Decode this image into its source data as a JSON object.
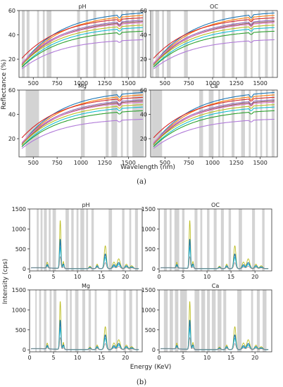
{
  "figure": {
    "part_labels": [
      "(a)",
      "(b)"
    ]
  },
  "chart_data": [
    {
      "type": "line",
      "part": "(a)",
      "xlabel": "Wavelength (nm)",
      "ylabel": "Reflectance (%)",
      "xlim": [
        350,
        1680
      ],
      "ylim": [
        5,
        60
      ],
      "xticks": [
        500,
        750,
        1000,
        1250,
        1500
      ],
      "yticks": [
        20,
        40,
        60
      ],
      "grid": false,
      "series_colors": [
        "#1f77b4",
        "#ff7f0e",
        "#d62728",
        "#9467bd",
        "#8c564b",
        "#e377c2",
        "#bcbd22",
        "#17becf",
        "#2ca02c",
        "#b07ad8"
      ],
      "curve_end_values": [
        58,
        56,
        54,
        52,
        51,
        50,
        48,
        46,
        43,
        36
      ],
      "curve_start_values": [
        12,
        11.5,
        18,
        13,
        12,
        14,
        12.5,
        11,
        11,
        10
      ],
      "panels": [
        {
          "title": "pH",
          "highlight_bands": [
            [
              380,
              410
            ],
            [
              430,
              460
            ],
            [
              540,
              560
            ],
            [
              600,
              620
            ],
            [
              640,
              690
            ],
            [
              960,
              990
            ],
            [
              1050,
              1075
            ],
            [
              1130,
              1160
            ],
            [
              1240,
              1260
            ],
            [
              1290,
              1300
            ],
            [
              1330,
              1360
            ],
            [
              1420,
              1440
            ],
            [
              1470,
              1500
            ],
            [
              1530,
              1560
            ],
            [
              1590,
              1620
            ],
            [
              1640,
              1660
            ]
          ]
        },
        {
          "title": "OC",
          "highlight_bands": [
            [
              360,
              380
            ],
            [
              400,
              440
            ],
            [
              470,
              490
            ],
            [
              520,
              560
            ],
            [
              700,
              740
            ],
            [
              1000,
              1020
            ],
            [
              1100,
              1130
            ],
            [
              1200,
              1230
            ],
            [
              1330,
              1360
            ],
            [
              1400,
              1420
            ],
            [
              1480,
              1500
            ],
            [
              1550,
              1580
            ],
            [
              1620,
              1640
            ]
          ]
        },
        {
          "title": "Mg",
          "highlight_bands": [
            [
              420,
              560
            ],
            [
              1000,
              1040
            ],
            [
              1260,
              1290
            ],
            [
              1320,
              1380
            ],
            [
              1420,
              1440
            ],
            [
              1480,
              1500
            ],
            [
              1540,
              1660
            ]
          ]
        },
        {
          "title": "Ca",
          "highlight_bands": [
            [
              360,
              470
            ],
            [
              860,
              900
            ],
            [
              960,
              1010
            ],
            [
              1060,
              1080
            ],
            [
              1100,
              1120
            ],
            [
              1200,
              1230
            ],
            [
              1300,
              1340
            ],
            [
              1380,
              1400
            ],
            [
              1450,
              1470
            ],
            [
              1500,
              1520
            ],
            [
              1560,
              1580
            ],
            [
              1620,
              1650
            ]
          ]
        }
      ]
    },
    {
      "type": "line",
      "part": "(b)",
      "xlabel": "Energy (KeV)",
      "ylabel": "Intensity (cps)",
      "xlim": [
        0,
        23.5
      ],
      "ylim": [
        -50,
        1500
      ],
      "xticks": [
        0,
        5,
        10,
        15,
        20
      ],
      "yticks": [
        0,
        500,
        1000,
        1500
      ],
      "grid": false,
      "series_colors": [
        "#bcbd22",
        "#1f77b4",
        "#17becf",
        "#9edae5",
        "#8c564b"
      ],
      "peaks": [
        {
          "x": 3.7,
          "height": 140,
          "width": 0.15
        },
        {
          "x": 6.4,
          "height": 1180,
          "width": 0.14
        },
        {
          "x": 7.05,
          "height": 170,
          "width": 0.14
        },
        {
          "x": 12.6,
          "height": 60,
          "width": 0.2
        },
        {
          "x": 14.1,
          "height": 110,
          "width": 0.18
        },
        {
          "x": 15.8,
          "height": 560,
          "width": 0.22
        },
        {
          "x": 17.6,
          "height": 160,
          "width": 0.25
        },
        {
          "x": 18.6,
          "height": 240,
          "width": 0.3
        },
        {
          "x": 20.2,
          "height": 110,
          "width": 0.25
        },
        {
          "x": 21.3,
          "height": 70,
          "width": 0.3
        }
      ],
      "panels": [
        {
          "title": "pH",
          "highlight_bands": [
            [
              1.5,
              1.9
            ],
            [
              2.3,
              2.7
            ],
            [
              3.0,
              3.6
            ],
            [
              4.0,
              4.4
            ],
            [
              4.8,
              5.5
            ],
            [
              7.5,
              8.2
            ],
            [
              8.7,
              9.2
            ],
            [
              9.8,
              10.2
            ],
            [
              10.6,
              11.4
            ],
            [
              11.8,
              12.2
            ],
            [
              12.9,
              13.4
            ],
            [
              16.5,
              17.2
            ],
            [
              19.3,
              19.8
            ],
            [
              20.8,
              21.2
            ],
            [
              22.0,
              22.6
            ]
          ]
        },
        {
          "title": "OC",
          "highlight_bands": [
            [
              1.0,
              1.6
            ],
            [
              2.2,
              2.6
            ],
            [
              3.2,
              4.2
            ],
            [
              4.8,
              5.3
            ],
            [
              7.4,
              8.0
            ],
            [
              8.6,
              9.0
            ],
            [
              10.0,
              10.5
            ],
            [
              11.4,
              12.0
            ],
            [
              12.9,
              13.5
            ],
            [
              14.5,
              15.0
            ],
            [
              16.6,
              17.3
            ],
            [
              19.4,
              20.0
            ],
            [
              21.5,
              22.0
            ]
          ]
        },
        {
          "title": "Mg",
          "highlight_bands": [
            [
              1.2,
              1.5
            ],
            [
              2.0,
              2.4
            ],
            [
              3.0,
              3.5
            ],
            [
              4.2,
              4.6
            ],
            [
              5.0,
              5.6
            ],
            [
              7.6,
              8.0
            ],
            [
              8.4,
              8.8
            ],
            [
              9.5,
              10.2
            ],
            [
              11.0,
              11.6
            ],
            [
              12.3,
              12.8
            ],
            [
              13.6,
              14.0
            ],
            [
              16.4,
              17.0
            ],
            [
              18.0,
              18.3
            ],
            [
              19.6,
              20.1
            ],
            [
              20.8,
              21.4
            ],
            [
              22.2,
              22.6
            ]
          ]
        },
        {
          "title": "Ca",
          "highlight_bands": [
            [
              1.0,
              1.8
            ],
            [
              2.2,
              2.9
            ],
            [
              3.3,
              4.0
            ],
            [
              4.4,
              5.8
            ],
            [
              7.4,
              8.4
            ],
            [
              8.8,
              9.6
            ],
            [
              10.0,
              10.6
            ],
            [
              11.0,
              11.8
            ],
            [
              12.2,
              13.0
            ],
            [
              13.4,
              14.0
            ],
            [
              16.3,
              17.2
            ],
            [
              19.2,
              19.6
            ],
            [
              20.4,
              21.0
            ],
            [
              21.6,
              22.4
            ]
          ]
        }
      ]
    }
  ]
}
